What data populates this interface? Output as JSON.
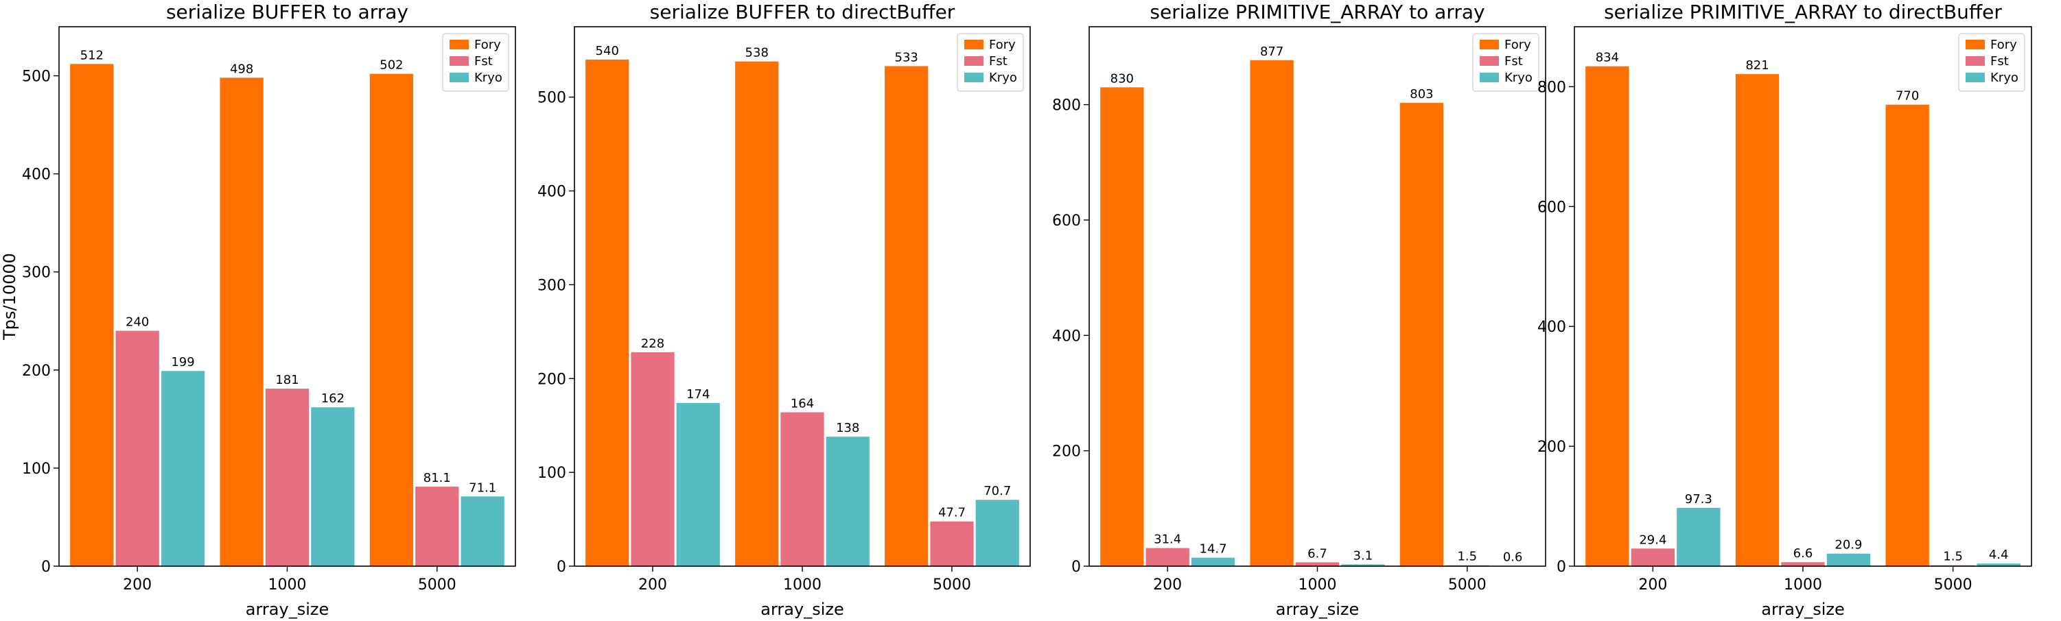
{
  "chart_data": [
    {
      "type": "bar",
      "title": "serialize BUFFER to array",
      "xlabel": "array_size",
      "ylabel": "Tps/10000",
      "categories": [
        "200",
        "1000",
        "5000"
      ],
      "ylim": [
        0,
        550
      ],
      "yticks": [
        0,
        100,
        200,
        300,
        400,
        500
      ],
      "series": [
        {
          "name": "Fory",
          "color": "#ff7000",
          "values": [
            512,
            498,
            502
          ],
          "labels": [
            "512",
            "498",
            "502"
          ]
        },
        {
          "name": "Fst",
          "color": "#e86f81",
          "values": [
            240,
            181,
            81.1
          ],
          "labels": [
            "240",
            "181",
            "81.1"
          ]
        },
        {
          "name": "Kryo",
          "color": "#56bcc2",
          "values": [
            199,
            162,
            71.1
          ],
          "labels": [
            "199",
            "162",
            "71.1"
          ]
        }
      ],
      "legend": "top-right",
      "grid": false
    },
    {
      "type": "bar",
      "title": "serialize BUFFER to directBuffer",
      "xlabel": "array_size",
      "ylabel": "",
      "categories": [
        "200",
        "1000",
        "5000"
      ],
      "ylim": [
        0,
        575
      ],
      "yticks": [
        0,
        100,
        200,
        300,
        400,
        500
      ],
      "series": [
        {
          "name": "Fory",
          "color": "#ff7000",
          "values": [
            540,
            538,
            533
          ],
          "labels": [
            "540",
            "538",
            "533"
          ]
        },
        {
          "name": "Fst",
          "color": "#e86f81",
          "values": [
            228,
            164,
            47.7
          ],
          "labels": [
            "228",
            "164",
            "47.7"
          ]
        },
        {
          "name": "Kryo",
          "color": "#56bcc2",
          "values": [
            174,
            138,
            70.7
          ],
          "labels": [
            "174",
            "138",
            "70.7"
          ]
        }
      ],
      "legend": "top-right",
      "grid": false
    },
    {
      "type": "bar",
      "title": "serialize PRIMITIVE_ARRAY to array",
      "xlabel": "array_size",
      "ylabel": "",
      "categories": [
        "200",
        "1000",
        "5000"
      ],
      "ylim": [
        0,
        935
      ],
      "yticks": [
        0,
        200,
        400,
        600,
        800
      ],
      "series": [
        {
          "name": "Fory",
          "color": "#ff7000",
          "values": [
            830,
            877,
            803
          ],
          "labels": [
            "830",
            "877",
            "803"
          ]
        },
        {
          "name": "Fst",
          "color": "#e86f81",
          "values": [
            31.4,
            6.7,
            1.5
          ],
          "labels": [
            "31.4",
            "6.7",
            "1.5"
          ]
        },
        {
          "name": "Kryo",
          "color": "#56bcc2",
          "values": [
            14.7,
            3.1,
            0.6
          ],
          "labels": [
            "14.7",
            "3.1",
            "0.6"
          ]
        }
      ],
      "legend": "top-right",
      "grid": false
    },
    {
      "type": "bar",
      "title": "serialize PRIMITIVE_ARRAY to directBuffer",
      "xlabel": "array_size",
      "ylabel": "",
      "categories": [
        "200",
        "1000",
        "5000"
      ],
      "ylim": [
        0,
        900
      ],
      "yticks": [
        0,
        200,
        400,
        600,
        800
      ],
      "series": [
        {
          "name": "Fory",
          "color": "#ff7000",
          "values": [
            834,
            821,
            770
          ],
          "labels": [
            "834",
            "821",
            "770"
          ]
        },
        {
          "name": "Fst",
          "color": "#e86f81",
          "values": [
            29.4,
            6.6,
            1.5
          ],
          "labels": [
            "29.4",
            "6.6",
            "1.5"
          ]
        },
        {
          "name": "Kryo",
          "color": "#56bcc2",
          "values": [
            97.3,
            20.9,
            4.4
          ],
          "labels": [
            "97.3",
            "20.9",
            "4.4"
          ]
        }
      ],
      "legend": "top-right",
      "grid": false
    }
  ]
}
